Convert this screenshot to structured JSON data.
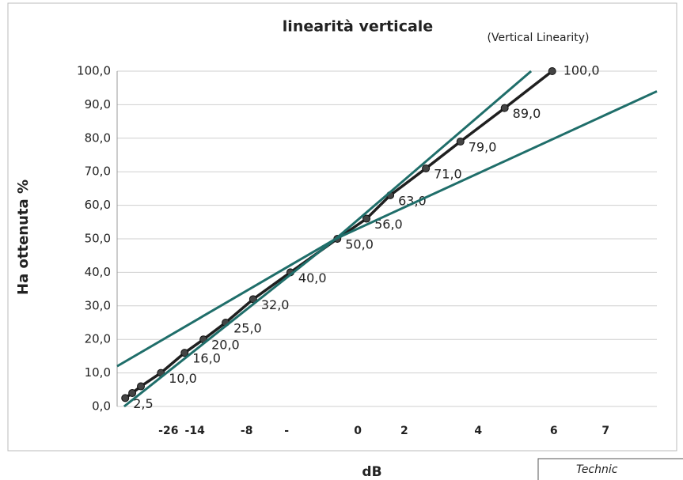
{
  "chart_data": {
    "type": "line",
    "title": "linearità verticale",
    "subtitle": "(Vertical Linearity)",
    "y_label": "Ha ottenuta %",
    "x_label": "dB",
    "xlim": [
      0,
      100
    ],
    "xticks": [
      {
        "value": 9.5,
        "label": "-26"
      },
      {
        "value": 14.4,
        "label": "-14"
      },
      {
        "value": 24.0,
        "label": "-8"
      },
      {
        "value": 31.4,
        "label": "-"
      },
      {
        "value": 44.6,
        "label": "0"
      },
      {
        "value": 53.2,
        "label": "2"
      },
      {
        "value": 66.9,
        "label": "4"
      },
      {
        "value": 80.9,
        "label": "6"
      },
      {
        "value": 90.5,
        "label": "7"
      }
    ],
    "ylim": [
      0,
      100
    ],
    "yticks": [
      {
        "value": 0,
        "label": "0,0"
      },
      {
        "value": 10,
        "label": "10,0"
      },
      {
        "value": 20,
        "label": "20,0"
      },
      {
        "value": 30,
        "label": "30,0"
      },
      {
        "value": 40,
        "label": "40,0"
      },
      {
        "value": 50,
        "label": "50,0"
      },
      {
        "value": 60,
        "label": "60,0"
      },
      {
        "value": 70,
        "label": "70,0"
      },
      {
        "value": 80,
        "label": "80,0"
      },
      {
        "value": 90,
        "label": "90,0"
      },
      {
        "value": 100,
        "label": "100,0"
      }
    ],
    "grid": true,
    "series": [
      {
        "color": "#1f1f1f",
        "markers": true,
        "x": [
          1.5,
          2.8,
          4.4,
          8.1,
          12.5,
          16.0,
          20.1,
          25.2,
          32.1,
          40.8,
          46.2,
          50.6,
          57.2,
          63.6,
          71.8,
          80.6
        ],
        "values": [
          2.5,
          4,
          6,
          10,
          16,
          20,
          25,
          32,
          40,
          50,
          56,
          63,
          71,
          79,
          89,
          100
        ],
        "value_labels": [
          "2,5",
          null,
          null,
          "10,0",
          "16,0",
          "20,0",
          "25,0",
          "32,0",
          "40,0",
          "50,0",
          "56,0",
          "63,0",
          "71,0",
          "79,0",
          "89,0",
          "100,0"
        ]
      },
      {
        "color": "#1f6e6a",
        "markers": false,
        "x": [
          0,
          40.5,
          76.7
        ],
        "values": [
          12,
          50,
          100
        ]
      },
      {
        "color": "#1f6e6a",
        "markers": false,
        "x": [
          1.3,
          40.5,
          100
        ],
        "values": [
          0,
          50,
          94
        ]
      }
    ]
  },
  "stamp": "Technic"
}
